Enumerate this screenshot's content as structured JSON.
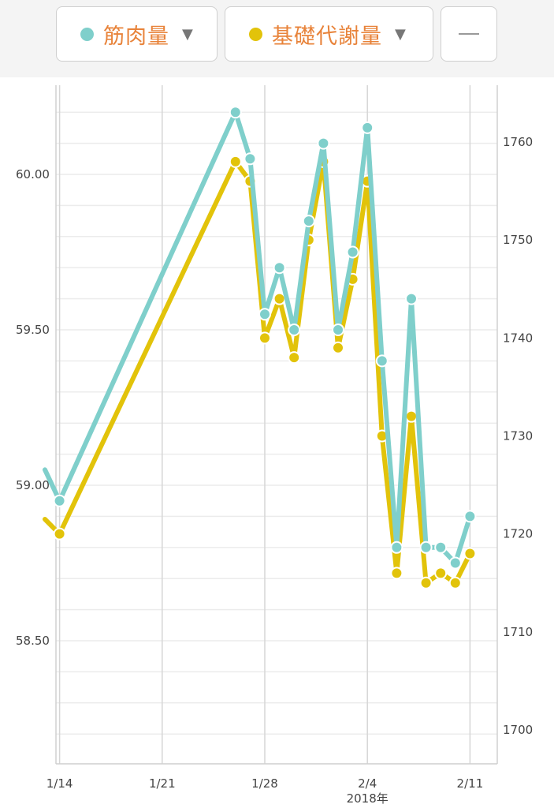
{
  "toolbar": {
    "selectors": [
      {
        "label": "筋肉量",
        "color": "#7fcfcb",
        "icon": "chevron-down-icon"
      },
      {
        "label": "基礎代謝量",
        "color": "#e2c30a",
        "icon": "chevron-down-icon"
      }
    ],
    "extra_icon": "dash-icon"
  },
  "chart_data": {
    "type": "line",
    "x_ticks": [
      "1/14",
      "1/21",
      "1/28",
      "2/4",
      "2/11"
    ],
    "x_sublabel": "2018年",
    "y_left_ticks": [
      "58.50",
      "59.00",
      "59.50",
      "60.00"
    ],
    "y_right_ticks": [
      "1700",
      "1710",
      "1720",
      "1730",
      "1740",
      "1750",
      "1760"
    ],
    "ylim_left": [
      58.0,
      60.2
    ],
    "ylim_right": [
      1698,
      1763
    ],
    "grid": true,
    "series": [
      {
        "name": "筋肉量",
        "axis": "left",
        "color": "#7fcfcb",
        "points": [
          [
            "2018-01-13",
            59.05
          ],
          [
            "2018-01-14",
            58.95
          ],
          [
            "2018-01-26",
            60.2
          ],
          [
            "2018-01-27",
            60.05
          ],
          [
            "2018-01-28",
            59.55
          ],
          [
            "2018-01-29",
            59.7
          ],
          [
            "2018-01-30",
            59.5
          ],
          [
            "2018-01-31",
            59.85
          ],
          [
            "2018-02-01",
            60.1
          ],
          [
            "2018-02-02",
            59.5
          ],
          [
            "2018-02-03",
            59.75
          ],
          [
            "2018-02-04",
            60.15
          ],
          [
            "2018-02-05",
            59.4
          ],
          [
            "2018-02-06",
            58.8
          ],
          [
            "2018-02-07",
            59.6
          ],
          [
            "2018-02-08",
            58.8
          ],
          [
            "2018-02-09",
            58.8
          ],
          [
            "2018-02-10",
            58.75
          ],
          [
            "2018-02-11",
            58.9
          ]
        ]
      },
      {
        "name": "基礎代謝量",
        "axis": "right",
        "color": "#e2c30a",
        "points": [
          [
            "2018-01-13",
            1721.5
          ],
          [
            "2018-01-14",
            1720
          ],
          [
            "2018-01-26",
            1758
          ],
          [
            "2018-01-27",
            1756
          ],
          [
            "2018-01-28",
            1740
          ],
          [
            "2018-01-29",
            1744
          ],
          [
            "2018-01-30",
            1738
          ],
          [
            "2018-01-31",
            1750
          ],
          [
            "2018-02-01",
            1758
          ],
          [
            "2018-02-02",
            1739
          ],
          [
            "2018-02-03",
            1746
          ],
          [
            "2018-02-04",
            1756
          ],
          [
            "2018-02-05",
            1730
          ],
          [
            "2018-02-06",
            1716
          ],
          [
            "2018-02-07",
            1732
          ],
          [
            "2018-02-08",
            1715
          ],
          [
            "2018-02-09",
            1716
          ],
          [
            "2018-02-10",
            1715
          ],
          [
            "2018-02-11",
            1718
          ]
        ]
      }
    ]
  }
}
